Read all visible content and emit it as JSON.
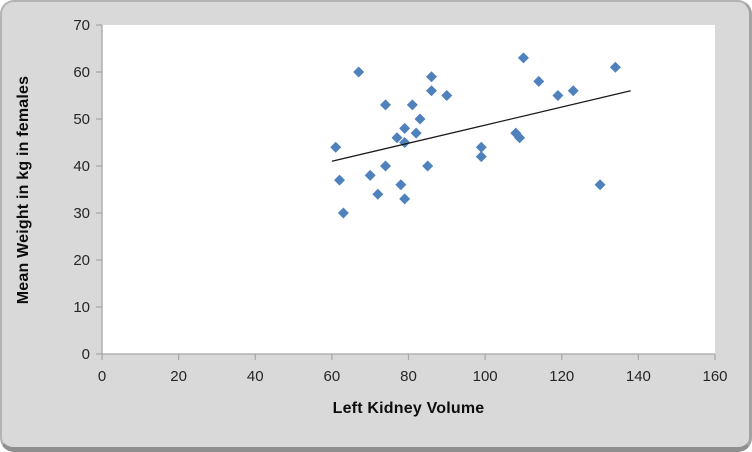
{
  "figure": {
    "background_color": "#d9d9d9",
    "plot_background_color": "#ffffff",
    "frame_border_color": "#a6a6a6",
    "axis_line_color": "#a6a6a6",
    "tick_label_color": "#262626"
  },
  "chart_data": {
    "type": "scatter",
    "title": "",
    "xlabel": "Left Kidney Volume",
    "ylabel": "Mean Weight in kg in females",
    "xlim": [
      0,
      160
    ],
    "ylim": [
      0,
      70
    ],
    "x_ticks": [
      0,
      20,
      40,
      60,
      80,
      100,
      120,
      140,
      160
    ],
    "y_ticks": [
      0,
      10,
      20,
      30,
      40,
      50,
      60,
      70
    ],
    "grid": false,
    "legend": "none",
    "marker": {
      "shape": "diamond",
      "color": "#4f81bd",
      "size": 11
    },
    "points": [
      [
        61,
        44
      ],
      [
        62,
        37
      ],
      [
        63,
        30
      ],
      [
        67,
        60
      ],
      [
        70,
        38
      ],
      [
        72,
        34
      ],
      [
        74,
        53
      ],
      [
        74,
        40
      ],
      [
        78,
        36
      ],
      [
        79,
        33
      ],
      [
        81,
        53
      ],
      [
        83,
        50
      ],
      [
        79,
        48
      ],
      [
        82,
        47
      ],
      [
        77,
        46
      ],
      [
        79,
        45
      ],
      [
        85,
        40
      ],
      [
        86,
        59
      ],
      [
        86,
        56
      ],
      [
        90,
        55
      ],
      [
        99,
        44
      ],
      [
        99,
        42
      ],
      [
        108,
        47
      ],
      [
        109,
        46
      ],
      [
        110,
        63
      ],
      [
        114,
        58
      ],
      [
        119,
        55
      ],
      [
        123,
        56
      ],
      [
        130,
        36
      ],
      [
        134,
        61
      ]
    ],
    "trendline": {
      "type": "linear",
      "color": "#1a1a1a",
      "x1": 60,
      "y1": 41,
      "x2": 138,
      "y2": 56
    }
  }
}
